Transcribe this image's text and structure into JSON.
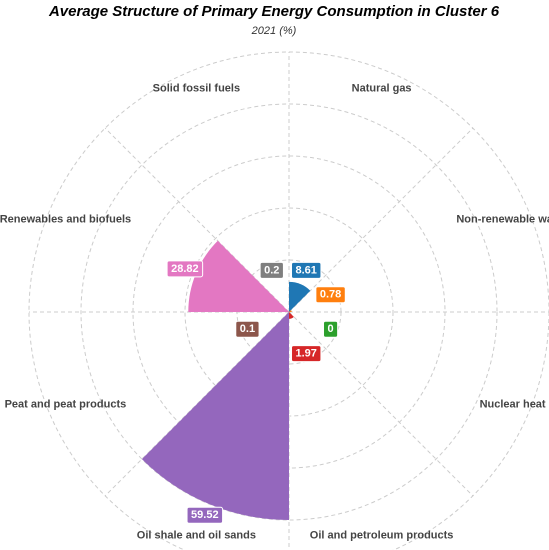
{
  "chart_data": {
    "type": "polar_bar",
    "title": "Average Structure of Primary Energy Consumption in Cluster 6",
    "subtitle": "2021 (%)",
    "categories": [
      "Natural gas",
      "Non-renewable waste",
      "Nuclear heat",
      "Oil and petroleum products",
      "Oil shale and oil sands",
      "Peat and peat products",
      "Renewables and biofuels",
      "Solid fossil fuels"
    ],
    "values": [
      8.61,
      0.78,
      0,
      1.97,
      59.52,
      0.1,
      28.82,
      0.2
    ],
    "colors": [
      "#1f77b4",
      "#ff7f0e",
      "#2ca02c",
      "#d62728",
      "#9467bd",
      "#8c564b",
      "#e377c2",
      "#7f7f7f"
    ],
    "grid": true
  }
}
